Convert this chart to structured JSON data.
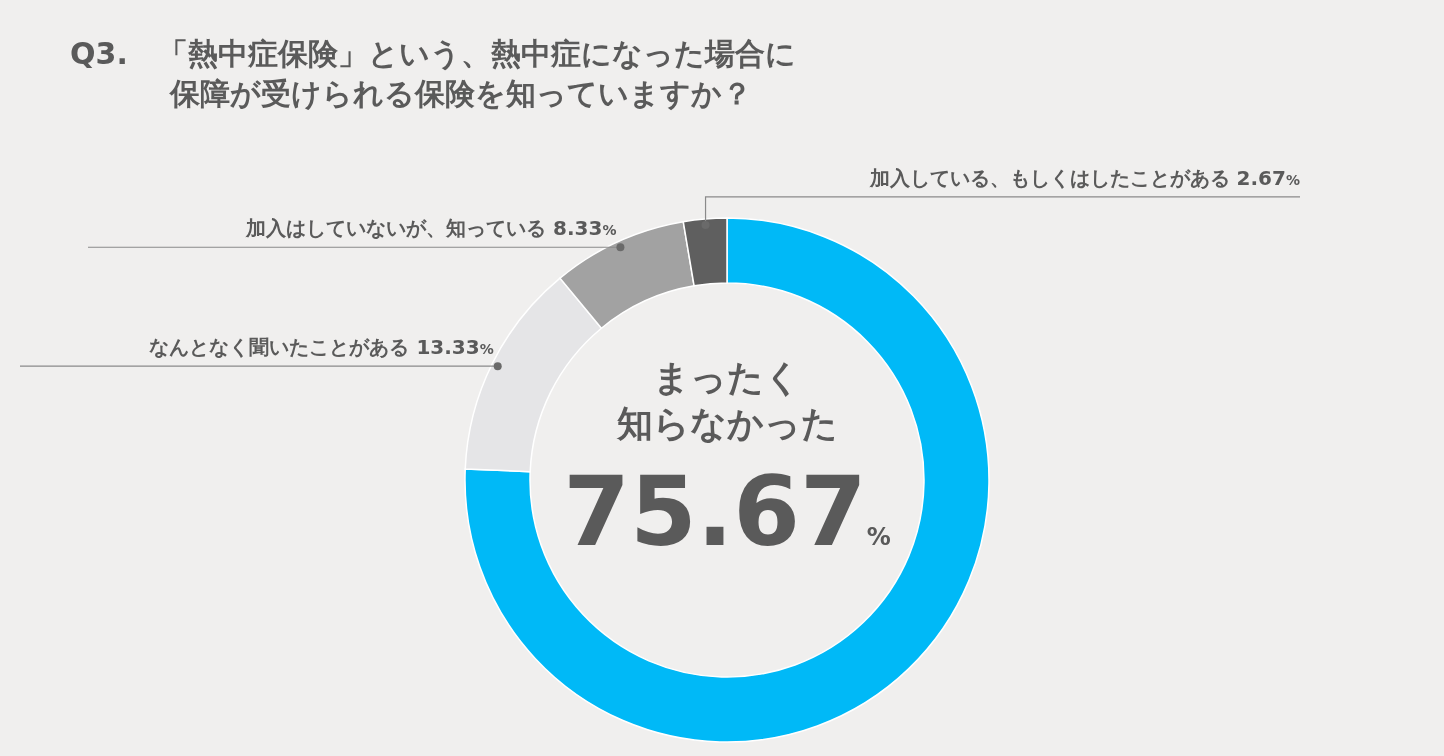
{
  "chart_data": {
    "type": "donut",
    "title": "Q3.　「熱中症保険」という、熱中症になった場合に保障が受けられる保険を知っていますか？",
    "categories": [
      "まったく知らなかった",
      "なんとなく聞いたことがある",
      "加入はしていないが、知っている",
      "加入している、もしくはしたことがある"
    ],
    "values": [
      75.67,
      13.33,
      8.33,
      2.67
    ],
    "colors": [
      "#00b9f7",
      "#e5e5e7",
      "#a2a2a2",
      "#5f5f5f"
    ],
    "value_labels": [
      "75.67%",
      "13.33%",
      "8.33%",
      "2.67%"
    ]
  }
}
